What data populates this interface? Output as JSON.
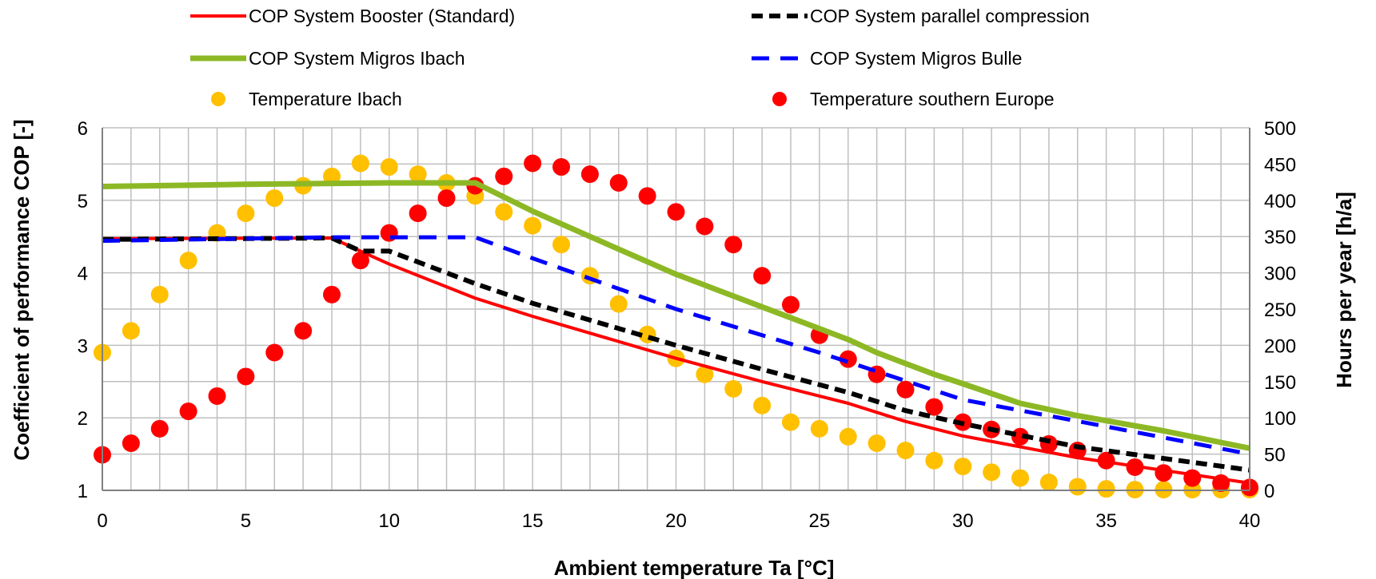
{
  "chart_data": {
    "type": "line",
    "title": "",
    "xlabel": "Ambient temperature Ta [°C]",
    "ylabel": "Coefficient of performance COP [-]",
    "y2label": "Hours per year [h/a]",
    "xlim": [
      0,
      40
    ],
    "ylim": [
      1,
      6
    ],
    "y2lim": [
      0,
      500
    ],
    "x_ticks": [
      "0",
      "5",
      "10",
      "15",
      "20",
      "25",
      "30",
      "35",
      "40"
    ],
    "y_ticks": [
      "1",
      "2",
      "3",
      "4",
      "5",
      "6"
    ],
    "y2_ticks": [
      "0",
      "50",
      "100",
      "150",
      "200",
      "250",
      "300",
      "350",
      "400",
      "450",
      "500"
    ],
    "grid": true,
    "legend_position": "top",
    "series": [
      {
        "name": "COP System Booster (Standard)",
        "axis": "left",
        "kind": "line",
        "style": "solid",
        "color": "#ff0000",
        "x": [
          0,
          8,
          9,
          10,
          13,
          15,
          20,
          23,
          26,
          28,
          30,
          34,
          40
        ],
        "y": [
          4.47,
          4.48,
          4.3,
          4.12,
          3.65,
          3.4,
          2.82,
          2.5,
          2.2,
          1.95,
          1.75,
          1.45,
          1.1
        ]
      },
      {
        "name": "COP System parallel compression",
        "axis": "left",
        "kind": "line",
        "style": "dash",
        "color": "#000000",
        "x": [
          0,
          8,
          9,
          10,
          13,
          15,
          20,
          23,
          26,
          28,
          30,
          34,
          40
        ],
        "y": [
          4.46,
          4.48,
          4.3,
          4.3,
          3.85,
          3.58,
          3.0,
          2.67,
          2.35,
          2.1,
          1.92,
          1.6,
          1.28
        ]
      },
      {
        "name": "COP System Migros Ibach",
        "axis": "left",
        "kind": "line",
        "style": "solid-thick",
        "color": "#8db825",
        "x": [
          0,
          5,
          10,
          13,
          15,
          17,
          20,
          23,
          26,
          27,
          29,
          30,
          32,
          34,
          37,
          40
        ],
        "y": [
          5.19,
          5.22,
          5.24,
          5.24,
          4.85,
          4.5,
          3.98,
          3.53,
          3.08,
          2.9,
          2.6,
          2.47,
          2.2,
          2.03,
          1.82,
          1.58
        ]
      },
      {
        "name": "COP System Migros Bulle",
        "axis": "left",
        "kind": "line",
        "style": "dash",
        "color": "#0000ff",
        "x": [
          0,
          8,
          13,
          15,
          20,
          25,
          30,
          35,
          40
        ],
        "y": [
          4.44,
          4.49,
          4.49,
          4.2,
          3.5,
          2.9,
          2.25,
          1.88,
          1.5
        ]
      },
      {
        "name": "Temperature Ibach",
        "axis": "right",
        "kind": "scatter",
        "color": "#ffc000",
        "x": [
          0,
          1,
          2,
          3,
          4,
          5,
          6,
          7,
          8,
          9,
          10,
          11,
          12,
          13,
          14,
          15,
          16,
          17,
          18,
          19,
          20,
          21,
          22,
          23,
          24,
          25,
          26,
          27,
          28,
          29,
          30,
          31,
          32,
          33,
          34,
          35,
          36,
          37,
          38,
          39,
          40
        ],
        "y": [
          190,
          220,
          270,
          317,
          355,
          382,
          403,
          420,
          433,
          451,
          446,
          436,
          424,
          406,
          384,
          365,
          339,
          296,
          257,
          215,
          182,
          160,
          140,
          117,
          94,
          85,
          74,
          65,
          55,
          41,
          33,
          25,
          17,
          11,
          5,
          2,
          1,
          1,
          1,
          1,
          1
        ]
      },
      {
        "name": "Temperature southern Europe",
        "axis": "right",
        "kind": "scatter",
        "color": "#ff0000",
        "x": [
          0,
          1,
          2,
          3,
          4,
          5,
          6,
          7,
          8,
          9,
          10,
          11,
          12,
          13,
          14,
          15,
          16,
          17,
          18,
          19,
          20,
          21,
          22,
          23,
          24,
          25,
          26,
          27,
          28,
          29,
          30,
          31,
          32,
          33,
          34,
          35,
          36,
          37,
          38,
          39,
          40
        ],
        "y": [
          49,
          65,
          85,
          109,
          130,
          157,
          190,
          220,
          270,
          317,
          355,
          382,
          403,
          420,
          433,
          451,
          446,
          436,
          424,
          406,
          384,
          364,
          339,
          296,
          256,
          214,
          181,
          160,
          139,
          115,
          94,
          84,
          74,
          64,
          55,
          41,
          32,
          24,
          17,
          10,
          4
        ]
      }
    ]
  }
}
